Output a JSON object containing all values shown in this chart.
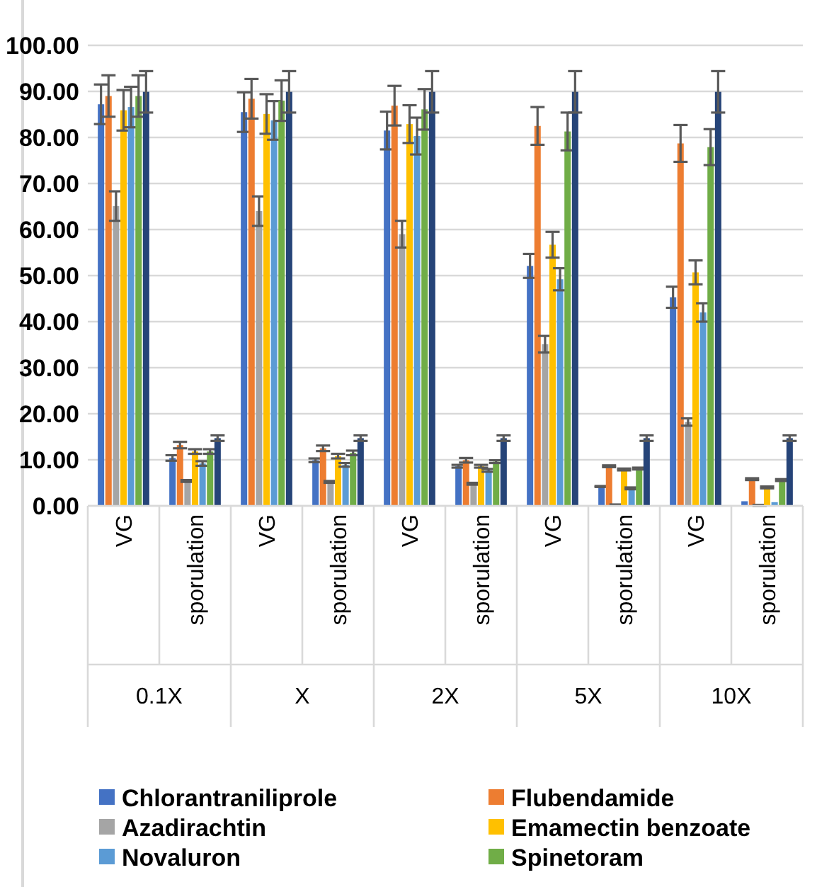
{
  "chart_data": {
    "type": "bar",
    "categories": [
      "VG",
      "sporulation",
      "VG",
      "sporulation",
      "VG",
      "sporulation",
      "VG",
      "sporulation",
      "VG",
      "sporulation"
    ],
    "annotations": [
      "0.1X",
      "X",
      "2X",
      "5X",
      "10X"
    ],
    "ylim": [
      0,
      100
    ],
    "yticks": [
      {
        "value": 0,
        "label": "0.00"
      },
      {
        "value": 10,
        "label": "10.00"
      },
      {
        "value": 20,
        "label": "20.00"
      },
      {
        "value": 30,
        "label": "30.00"
      },
      {
        "value": 40,
        "label": "40.00"
      },
      {
        "value": 50,
        "label": "50.00"
      },
      {
        "value": 60,
        "label": "60.00"
      },
      {
        "value": 70,
        "label": "70.00"
      },
      {
        "value": 80,
        "label": "80.00"
      },
      {
        "value": 90,
        "label": "90.00"
      },
      {
        "value": 100,
        "label": "100.00"
      }
    ],
    "grid": "y",
    "legend": "bottom",
    "series": [
      {
        "name": "Chlorantraniliprole",
        "color": "#4472c4",
        "values": [
          87.2,
          10.4,
          85.5,
          9.9,
          81.5,
          8.6,
          52.1,
          4.2,
          45.3,
          1.0
        ],
        "errors": [
          4.3,
          0.6,
          4.3,
          0.4,
          4.1,
          0.3,
          2.6,
          0.1,
          2.3,
          null
        ]
      },
      {
        "name": "Flubendamide",
        "color": "#ed7d31",
        "values": [
          89.0,
          13.2,
          88.4,
          12.5,
          86.9,
          9.9,
          82.5,
          8.6,
          78.7,
          5.8
        ],
        "errors": [
          4.5,
          0.7,
          4.3,
          0.6,
          4.3,
          0.5,
          4.1,
          0.2,
          4.0,
          0.2
        ]
      },
      {
        "name": "Azadirachtin",
        "color": "#a5a5a5",
        "values": [
          65.1,
          5.4,
          64.0,
          5.2,
          59.0,
          4.8,
          35.1,
          0.2,
          18.2,
          0.1
        ],
        "errors": [
          3.2,
          0.2,
          3.2,
          0.2,
          2.9,
          0.2,
          1.8,
          0.1,
          0.8,
          0.1
        ]
      },
      {
        "name": "Emamectin benzoate",
        "color": "#ffc000",
        "values": [
          85.9,
          11.8,
          85.1,
          10.8,
          82.9,
          8.6,
          56.7,
          7.9,
          50.7,
          4.0
        ],
        "errors": [
          4.4,
          0.5,
          4.3,
          0.5,
          4.1,
          0.3,
          2.8,
          0.2,
          2.6,
          0.2
        ]
      },
      {
        "name": "Novaluron",
        "color": "#5b9bd5",
        "values": [
          86.6,
          9.2,
          83.7,
          8.9,
          80.3,
          7.7,
          49.2,
          3.8,
          42.0,
          0.8
        ],
        "errors": [
          4.4,
          0.5,
          4.2,
          0.4,
          4.0,
          0.3,
          2.4,
          0.2,
          2.0,
          null
        ]
      },
      {
        "name": "Spinetoram",
        "color": "#70ad47",
        "values": [
          89.0,
          11.8,
          88.0,
          11.5,
          86.1,
          9.6,
          81.3,
          8.1,
          77.9,
          5.6
        ],
        "errors": [
          4.5,
          0.5,
          4.4,
          0.5,
          4.4,
          0.3,
          4.1,
          0.2,
          3.9,
          0.2
        ]
      },
      {
        "color": "#264478",
        "values": [
          89.9,
          14.7,
          89.9,
          14.7,
          89.9,
          14.7,
          89.9,
          14.7,
          89.9,
          14.7
        ],
        "errors": [
          4.5,
          0.6,
          4.5,
          0.6,
          4.5,
          0.6,
          4.5,
          0.6,
          4.5,
          0.6
        ]
      }
    ]
  }
}
